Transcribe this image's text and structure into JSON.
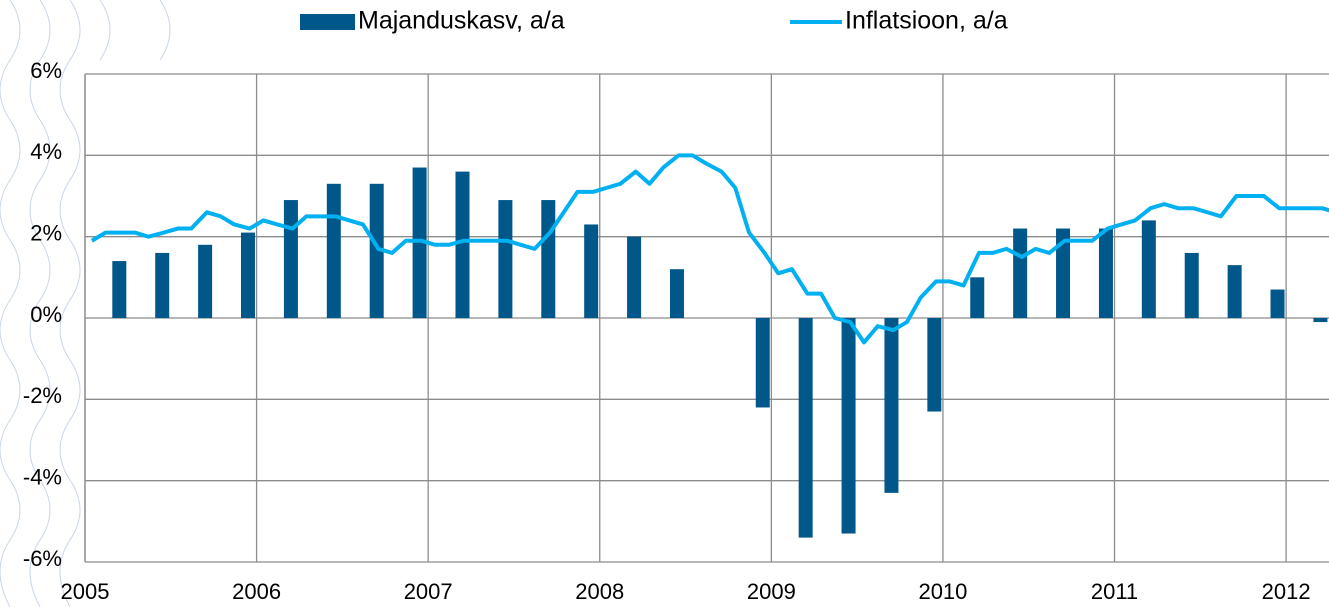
{
  "chart_data": {
    "type": "bar_line",
    "legend": "top",
    "grid": true,
    "xlim": [
      2005,
      2012.25
    ],
    "xticks": [
      2005,
      2006,
      2007,
      2008,
      2009,
      2010,
      2011,
      2012
    ],
    "ylim": [
      -6,
      6
    ],
    "yticks": [
      {
        "value": -6,
        "label": "-6%"
      },
      {
        "value": -4,
        "label": "-4%"
      },
      {
        "value": -2,
        "label": "-2%"
      },
      {
        "value": 0,
        "label": "0%"
      },
      {
        "value": 2,
        "label": "2%"
      },
      {
        "value": 4,
        "label": "4%"
      },
      {
        "value": 6,
        "label": "6%"
      }
    ],
    "series": [
      {
        "name": "Majanduskasv, a/a",
        "type": "bar",
        "color": "#00578a",
        "x": [
          2005.2,
          2005.45,
          2005.7,
          2005.95,
          2006.2,
          2006.45,
          2006.7,
          2006.95,
          2007.2,
          2007.45,
          2007.7,
          2007.95,
          2008.2,
          2008.45,
          2008.7,
          2008.95,
          2009.2,
          2009.45,
          2009.7,
          2009.95,
          2010.2,
          2010.45,
          2010.7,
          2010.95,
          2011.2,
          2011.45,
          2011.7,
          2011.95,
          2012.2
        ],
        "values": [
          1.4,
          1.6,
          1.8,
          2.1,
          2.9,
          3.3,
          3.3,
          3.7,
          3.6,
          2.9,
          2.9,
          2.3,
          2.0,
          1.2,
          0,
          -2.2,
          -5.4,
          -5.3,
          -4.3,
          -2.3,
          1.0,
          2.2,
          2.2,
          2.2,
          2.4,
          1.6,
          1.3,
          0.7,
          -0.1
        ]
      },
      {
        "name": "Inflatsioon, a/a",
        "type": "line",
        "color": "#00b0f0",
        "x": [
          2005.04,
          2005.12,
          2005.21,
          2005.29,
          2005.37,
          2005.46,
          2005.54,
          2005.62,
          2005.71,
          2005.79,
          2005.87,
          2005.96,
          2006.04,
          2006.12,
          2006.21,
          2006.29,
          2006.37,
          2006.46,
          2006.54,
          2006.62,
          2006.71,
          2006.79,
          2006.87,
          2006.96,
          2007.04,
          2007.12,
          2007.21,
          2007.29,
          2007.37,
          2007.46,
          2007.54,
          2007.62,
          2007.71,
          2007.79,
          2007.87,
          2007.96,
          2008.04,
          2008.12,
          2008.21,
          2008.29,
          2008.37,
          2008.46,
          2008.54,
          2008.62,
          2008.71,
          2008.79,
          2008.87,
          2008.96,
          2009.04,
          2009.12,
          2009.21,
          2009.29,
          2009.37,
          2009.46,
          2009.54,
          2009.62,
          2009.71,
          2009.79,
          2009.87,
          2009.96,
          2010.04,
          2010.12,
          2010.21,
          2010.29,
          2010.37,
          2010.46,
          2010.54,
          2010.62,
          2010.71,
          2010.79,
          2010.87,
          2010.96,
          2011.04,
          2011.12,
          2011.21,
          2011.29,
          2011.37,
          2011.46,
          2011.54,
          2011.62,
          2011.71,
          2011.79,
          2011.87,
          2011.96,
          2012.04,
          2012.12,
          2012.21,
          2012.29
        ],
        "values": [
          1.9,
          2.1,
          2.1,
          2.1,
          2.0,
          2.1,
          2.2,
          2.2,
          2.6,
          2.5,
          2.3,
          2.2,
          2.4,
          2.3,
          2.2,
          2.5,
          2.5,
          2.5,
          2.4,
          2.3,
          1.7,
          1.6,
          1.9,
          1.9,
          1.8,
          1.8,
          1.9,
          1.9,
          1.9,
          1.9,
          1.8,
          1.7,
          2.1,
          2.6,
          3.1,
          3.1,
          3.2,
          3.3,
          3.6,
          3.3,
          3.7,
          4.0,
          4.0,
          3.8,
          3.6,
          3.2,
          2.1,
          1.6,
          1.1,
          1.2,
          0.6,
          0.6,
          0.0,
          -0.1,
          -0.6,
          -0.2,
          -0.3,
          -0.1,
          0.5,
          0.9,
          0.9,
          0.8,
          1.6,
          1.6,
          1.7,
          1.5,
          1.7,
          1.6,
          1.9,
          1.9,
          1.9,
          2.2,
          2.3,
          2.4,
          2.7,
          2.8,
          2.7,
          2.7,
          2.6,
          2.5,
          3.0,
          3.0,
          3.0,
          2.7,
          2.7,
          2.7,
          2.7,
          2.6
        ]
      }
    ]
  }
}
